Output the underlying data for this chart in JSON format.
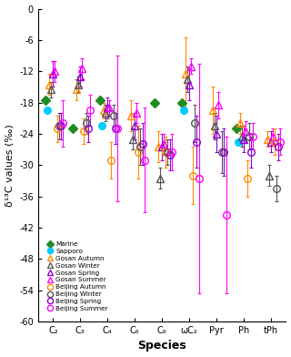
{
  "species": [
    "C₂",
    "C₃",
    "C₄",
    "C₆",
    "C₉",
    "ωC₂",
    "Pyr",
    "Ph",
    "tPh"
  ],
  "x_positions": [
    0,
    1,
    2,
    3,
    4,
    5,
    6,
    7,
    8
  ],
  "xlabel": "Species",
  "ylabel": "δ¹³C values (‰)",
  "ylim": [
    -60,
    0
  ],
  "yticks": [
    0,
    -6,
    -12,
    -18,
    -24,
    -30,
    -36,
    -42,
    -48,
    -54,
    -60
  ],
  "series": {
    "Marine": {
      "marker": "D",
      "color": "#228B22",
      "filled": true,
      "values": [
        -17.5,
        -23.0,
        -17.5,
        null,
        -18.0,
        -18.0,
        null,
        -23.0,
        null
      ],
      "errors": [
        0,
        0,
        0,
        0,
        0,
        0,
        0,
        0,
        0
      ]
    },
    "Sapporo": {
      "marker": "o",
      "color": "#00CCFF",
      "filled": true,
      "values": [
        -19.5,
        null,
        -22.5,
        null,
        null,
        -19.5,
        null,
        -25.5,
        null
      ],
      "errors": [
        0,
        0,
        0,
        0,
        0,
        0,
        0,
        0,
        0
      ]
    },
    "Gosan Autumn": {
      "marker": "^",
      "color": "#FF8C00",
      "filled": false,
      "values": [
        -14.5,
        -15.5,
        -19.5,
        -20.5,
        -26.5,
        -12.5,
        -19.5,
        -22.0,
        -25.0
      ],
      "errors": [
        2.0,
        2.0,
        1.5,
        3.0,
        3.0,
        7.0,
        4.5,
        2.0,
        1.5
      ]
    },
    "Gosan Winter": {
      "marker": "^",
      "color": "#555555",
      "filled": false,
      "values": [
        -15.5,
        -14.5,
        -20.0,
        -25.0,
        -32.5,
        -13.5,
        -22.5,
        -24.5,
        -32.0
      ],
      "errors": [
        1.5,
        1.5,
        1.5,
        2.0,
        2.0,
        2.5,
        2.5,
        2.0,
        2.0
      ]
    },
    "Gosan Spring": {
      "marker": "^",
      "color": "#9400D3",
      "filled": false,
      "values": [
        -12.5,
        -13.0,
        -19.0,
        -22.5,
        -26.5,
        -14.5,
        -24.0,
        -25.0,
        -25.5
      ],
      "errors": [
        2.5,
        2.0,
        2.0,
        2.5,
        2.5,
        3.0,
        3.5,
        2.5,
        2.0
      ]
    },
    "Gosan Summer": {
      "marker": "^",
      "color": "#FF00FF",
      "filled": false,
      "values": [
        -12.0,
        -11.5,
        -19.0,
        -20.0,
        -26.0,
        -11.0,
        -18.5,
        -23.5,
        -24.5
      ],
      "errors": [
        2.0,
        2.0,
        1.5,
        2.0,
        2.0,
        1.5,
        2.5,
        2.0,
        1.5
      ]
    },
    "Beijing Autumn": {
      "marker": "o",
      "color": "#FF8C00",
      "filled": false,
      "values": [
        -23.0,
        -23.5,
        -29.0,
        -27.5,
        -27.5,
        -32.0,
        null,
        -32.5,
        -25.5
      ],
      "errors": [
        2.5,
        2.5,
        3.5,
        5.0,
        3.0,
        5.5,
        0,
        3.5,
        2.5
      ]
    },
    "Beijing Winter": {
      "marker": "o",
      "color": "#555555",
      "filled": false,
      "values": [
        -22.5,
        -22.0,
        -20.5,
        -26.5,
        -27.5,
        -22.0,
        -27.5,
        -24.5,
        -34.5
      ],
      "errors": [
        2.5,
        2.0,
        2.0,
        3.5,
        2.5,
        3.5,
        4.0,
        2.5,
        2.5
      ]
    },
    "Beijing Spring": {
      "marker": "o",
      "color": "#9400D3",
      "filled": false,
      "values": [
        -22.5,
        -23.0,
        -23.0,
        -26.0,
        -28.0,
        -25.5,
        -27.5,
        -27.5,
        -26.5
      ],
      "errors": [
        2.5,
        2.5,
        3.0,
        4.0,
        3.0,
        5.0,
        4.5,
        3.0,
        2.5
      ]
    },
    "Beijing Summer": {
      "marker": "o",
      "color": "#FF00FF",
      "filled": false,
      "values": [
        -22.0,
        -19.5,
        -23.0,
        -29.0,
        -27.5,
        -32.5,
        -39.5,
        -24.5,
        -25.5
      ],
      "errors": [
        4.5,
        3.0,
        14.0,
        10.0,
        3.5,
        22.0,
        15.0,
        2.5,
        2.5
      ]
    }
  },
  "legend_order": [
    "Marine",
    "Sapporo",
    "Gosan Autumn",
    "Gosan Winter",
    "Gosan Spring",
    "Gosan Summer",
    "Beijing Autumn",
    "Beijing Winter",
    "Beijing Spring",
    "Beijing Summer"
  ],
  "offsets": {
    "Marine": -0.28,
    "Sapporo": -0.21,
    "Gosan Autumn": -0.14,
    "Gosan Winter": -0.07,
    "Gosan Spring": 0.0,
    "Gosan Summer": 0.07,
    "Beijing Autumn": 0.14,
    "Beijing Winter": 0.21,
    "Beijing Spring": 0.28,
    "Beijing Summer": 0.35
  }
}
